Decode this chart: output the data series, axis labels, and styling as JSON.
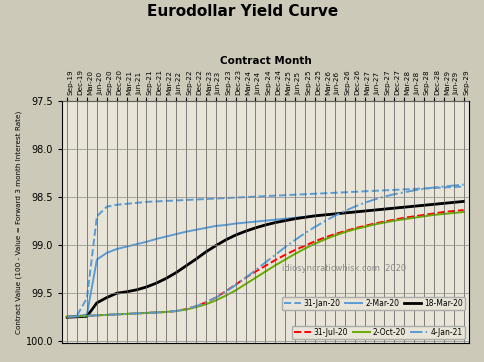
{
  "title": "Eurodollar Yield Curve",
  "xlabel": "Contract Month",
  "ylabel": "Contract Value (100 - Value = Forward 3 month Interest Rate)",
  "background_color": "#cdc9b8",
  "plot_background": "#e8e5d8",
  "ylim": [
    100.02,
    97.5
  ],
  "watermark": "idiosyncraticwhisk.com  2020",
  "x_labels": [
    "Sep-19",
    "Dec-19",
    "Mar-20",
    "Jun-20",
    "Sep-20",
    "Dec-20",
    "Mar-21",
    "Jun-21",
    "Sep-21",
    "Dec-21",
    "Mar-22",
    "Jun-22",
    "Sep-22",
    "Dec-22",
    "Mar-23",
    "Jun-23",
    "Sep-23",
    "Dec-23",
    "Mar-24",
    "Jun-24",
    "Sep-24",
    "Dec-24",
    "Mar-25",
    "Jun-25",
    "Sep-25",
    "Dec-25",
    "Mar-26",
    "Jun-26",
    "Sep-26",
    "Dec-26",
    "Mar-27",
    "Jun-27",
    "Sep-27",
    "Dec-27",
    "Mar-28",
    "Jun-28",
    "Sep-28",
    "Dec-28",
    "Mar-29",
    "Jun-29",
    "Sep-29"
  ],
  "yticks": [
    97.5,
    98.0,
    98.5,
    99.0,
    99.5,
    100.0
  ],
  "series": {
    "31-Jan-20": {
      "color": "#5b9bd5",
      "linestyle": "--",
      "linewidth": 1.4,
      "values": [
        99.75,
        99.73,
        99.55,
        98.7,
        98.6,
        98.58,
        98.57,
        98.56,
        98.55,
        98.545,
        98.54,
        98.535,
        98.53,
        98.525,
        98.52,
        98.515,
        98.51,
        98.505,
        98.5,
        98.495,
        98.49,
        98.485,
        98.48,
        98.475,
        98.47,
        98.465,
        98.46,
        98.455,
        98.45,
        98.445,
        98.44,
        98.435,
        98.43,
        98.425,
        98.42,
        98.415,
        98.41,
        98.405,
        98.4,
        98.395,
        98.39
      ]
    },
    "2-Mar-20": {
      "color": "#5b9bd5",
      "linestyle": "-",
      "linewidth": 1.4,
      "values": [
        99.75,
        99.74,
        99.72,
        99.15,
        99.08,
        99.04,
        99.015,
        98.99,
        98.965,
        98.935,
        98.91,
        98.885,
        98.86,
        98.84,
        98.82,
        98.8,
        98.79,
        98.775,
        98.765,
        98.755,
        98.745,
        98.735,
        98.725,
        98.715,
        98.705,
        98.695,
        98.685,
        98.675,
        98.665,
        98.655,
        98.645,
        98.635,
        98.625,
        98.615,
        98.605,
        98.595,
        98.585,
        98.575,
        98.565,
        98.555,
        98.545
      ]
    },
    "18-Mar-20": {
      "color": "#000000",
      "linestyle": "-",
      "linewidth": 2.0,
      "values": [
        99.75,
        99.745,
        99.74,
        99.6,
        99.545,
        99.5,
        99.485,
        99.465,
        99.435,
        99.395,
        99.345,
        99.285,
        99.215,
        99.145,
        99.07,
        99.005,
        98.945,
        98.895,
        98.855,
        98.82,
        98.79,
        98.765,
        98.745,
        98.725,
        98.71,
        98.695,
        98.685,
        98.675,
        98.665,
        98.655,
        98.645,
        98.635,
        98.625,
        98.615,
        98.605,
        98.595,
        98.585,
        98.575,
        98.565,
        98.555,
        98.545
      ]
    },
    "31-Jul-20": {
      "color": "#ff0000",
      "linestyle": "--",
      "linewidth": 1.4,
      "values": [
        99.745,
        99.74,
        99.735,
        99.73,
        99.725,
        99.72,
        99.715,
        99.71,
        99.705,
        99.7,
        99.695,
        99.685,
        99.665,
        99.635,
        99.595,
        99.545,
        99.48,
        99.41,
        99.34,
        99.275,
        99.215,
        99.155,
        99.1,
        99.05,
        99.005,
        98.96,
        98.92,
        98.885,
        98.855,
        98.825,
        98.8,
        98.775,
        98.755,
        98.735,
        98.715,
        98.7,
        98.685,
        98.67,
        98.655,
        98.645,
        98.635
      ]
    },
    "2-Oct-20": {
      "color": "#6aaa00",
      "linestyle": "-",
      "linewidth": 1.4,
      "values": [
        99.745,
        99.74,
        99.735,
        99.73,
        99.725,
        99.72,
        99.715,
        99.71,
        99.705,
        99.7,
        99.695,
        99.685,
        99.67,
        99.645,
        99.615,
        99.575,
        99.525,
        99.47,
        99.405,
        99.34,
        99.275,
        99.21,
        99.15,
        99.09,
        99.035,
        98.985,
        98.94,
        98.9,
        98.865,
        98.835,
        98.81,
        98.785,
        98.765,
        98.745,
        98.73,
        98.715,
        98.7,
        98.685,
        98.675,
        98.665,
        98.655
      ]
    },
    "4-Jan-21": {
      "color": "#5b9bd5",
      "linestyle": "-.",
      "linewidth": 1.4,
      "values": [
        99.745,
        99.74,
        99.735,
        99.73,
        99.725,
        99.72,
        99.715,
        99.71,
        99.705,
        99.7,
        99.695,
        99.685,
        99.665,
        99.635,
        99.595,
        99.545,
        99.485,
        99.415,
        99.34,
        99.26,
        99.18,
        99.1,
        99.02,
        98.945,
        98.875,
        98.81,
        98.75,
        98.695,
        98.645,
        98.6,
        98.56,
        98.525,
        98.495,
        98.47,
        98.45,
        98.43,
        98.415,
        98.4,
        98.39,
        98.38,
        98.37
      ]
    }
  }
}
